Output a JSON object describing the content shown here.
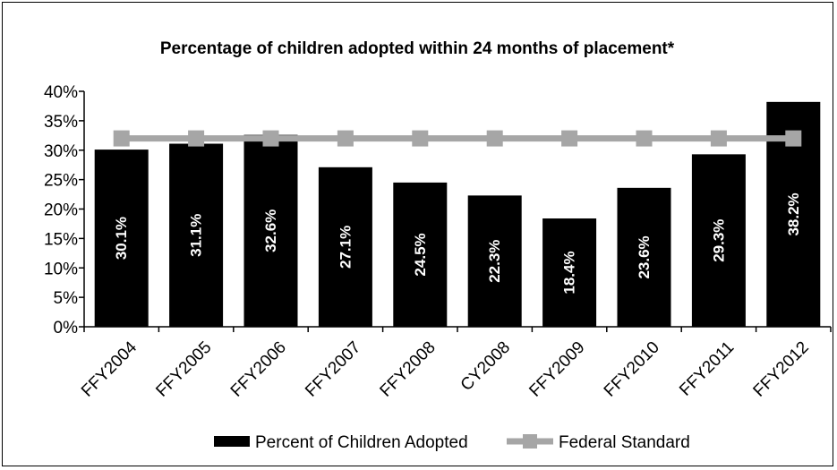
{
  "chart_data": {
    "type": "bar",
    "title": "Percentage of children adopted within 24 months of placement*",
    "categories": [
      "FFY2004",
      "FFY2005",
      "FFY2006",
      "FFY2007",
      "FFY2008",
      "CY2008",
      "FFY2009",
      "FFY2010",
      "FFY2011",
      "FFY2012"
    ],
    "series": [
      {
        "name": "Percent of Children Adopted",
        "type": "bar",
        "color": "#000000",
        "values": [
          30.1,
          31.1,
          32.6,
          27.1,
          24.5,
          22.3,
          18.4,
          23.6,
          29.3,
          38.2
        ],
        "data_labels": [
          "30.1%",
          "31.1%",
          "32.6%",
          "27.1%",
          "24.5%",
          "22.3%",
          "18.4%",
          "23.6%",
          "29.3%",
          "38.2%"
        ]
      },
      {
        "name": "Federal Standard",
        "type": "line",
        "color": "#a6a6a6",
        "marker": "square",
        "values": [
          32,
          32,
          32,
          32,
          32,
          32,
          32,
          32,
          32,
          32
        ]
      }
    ],
    "y_ticks": [
      "0%",
      "5%",
      "10%",
      "15%",
      "20%",
      "25%",
      "30%",
      "35%",
      "40%"
    ],
    "ylim": [
      0,
      40
    ],
    "y_unit": "%",
    "grid": false,
    "legend_position": "bottom"
  }
}
